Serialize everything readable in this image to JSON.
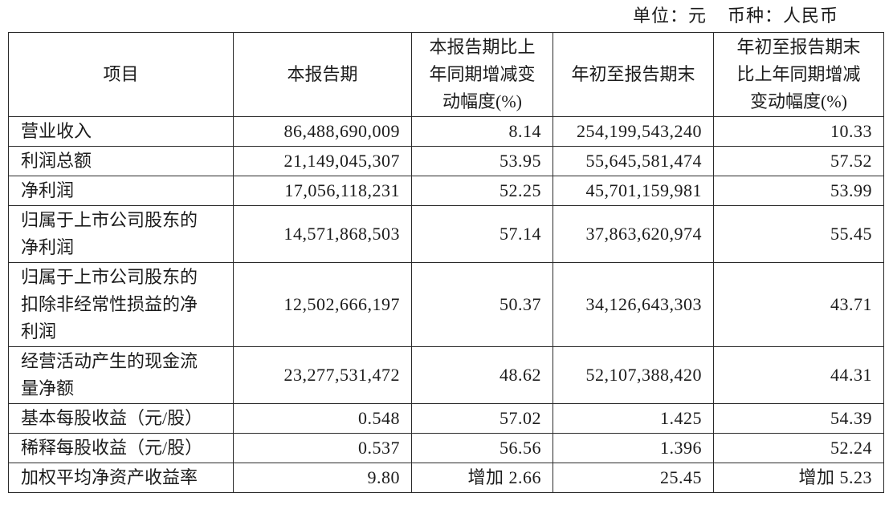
{
  "meta": {
    "unit": "单位：元",
    "currency": "币种：人民币"
  },
  "table": {
    "headers": [
      "项目",
      "本报告期",
      "本报告期比上\n年同期增减变\n动幅度(%)",
      "年初至报告期末",
      "年初至报告期末\n比上年同期增减\n变动幅度(%)"
    ],
    "rows": [
      {
        "item": "营业收入",
        "current_period": "86,488,690,009",
        "current_change": "8.14",
        "ytd": "254,199,543,240",
        "ytd_change": "10.33"
      },
      {
        "item": "利润总额",
        "current_period": "21,149,045,307",
        "current_change": "53.95",
        "ytd": "55,645,581,474",
        "ytd_change": "57.52"
      },
      {
        "item": "净利润",
        "current_period": "17,056,118,231",
        "current_change": "52.25",
        "ytd": "45,701,159,981",
        "ytd_change": "53.99"
      },
      {
        "item": "归属于上市公司股东的\n净利润",
        "current_period": "14,571,868,503",
        "current_change": "57.14",
        "ytd": "37,863,620,974",
        "ytd_change": "55.45"
      },
      {
        "item": "归属于上市公司股东的\n扣除非经常性损益的净\n利润",
        "current_period": "12,502,666,197",
        "current_change": "50.37",
        "ytd": "34,126,643,303",
        "ytd_change": "43.71"
      },
      {
        "item": "经营活动产生的现金流\n量净额",
        "current_period": "23,277,531,472",
        "current_change": "48.62",
        "ytd": "52,107,388,420",
        "ytd_change": "44.31"
      },
      {
        "item": "基本每股收益（元/股）",
        "current_period": "0.548",
        "current_change": "57.02",
        "ytd": "1.425",
        "ytd_change": "54.39"
      },
      {
        "item": "稀释每股收益（元/股）",
        "current_period": "0.537",
        "current_change": "56.56",
        "ytd": "1.396",
        "ytd_change": "52.24"
      },
      {
        "item": "加权平均净资产收益率",
        "current_period": "9.80",
        "current_change": "增加 2.66",
        "ytd": "25.45",
        "ytd_change": "增加 5.23"
      }
    ]
  }
}
